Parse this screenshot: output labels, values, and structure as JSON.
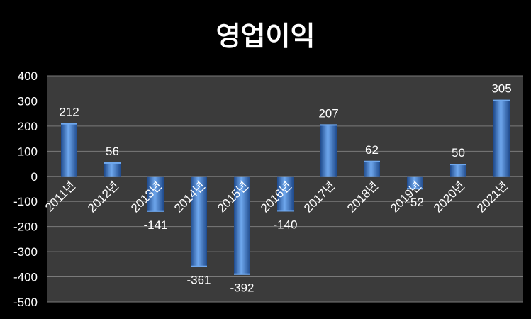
{
  "chart_data": {
    "type": "bar",
    "title": "영업이익",
    "categories": [
      "2011년",
      "2012년",
      "2013년",
      "2014년",
      "2015년",
      "2016년",
      "2017년",
      "2018년",
      "2019년",
      "2020년",
      "2021년"
    ],
    "values": [
      212,
      56,
      -141,
      -361,
      -392,
      -140,
      207,
      62,
      -52,
      50,
      305
    ],
    "ylim": [
      -500,
      400
    ],
    "yticks": [
      400,
      300,
      200,
      100,
      0,
      -100,
      -200,
      -300,
      -400,
      -500
    ],
    "ytick_labels": [
      "400",
      "300",
      "200",
      "100",
      "0",
      "-100",
      "-200",
      "-300",
      "-400",
      "-500"
    ],
    "data_labels": [
      "212",
      "56",
      "-141",
      "-361",
      "-392",
      "-140",
      "207",
      "62",
      "-52",
      "50",
      "305"
    ],
    "grid": true,
    "colors": {
      "background": "#000000",
      "plot_background": "#3b3b3b",
      "gridline": "#7a7a7a",
      "bar_dark": "#1f4a8c",
      "bar_mid": "#3f7fd0",
      "bar_light": "#6fa8ee",
      "text": "#ffffff"
    }
  }
}
